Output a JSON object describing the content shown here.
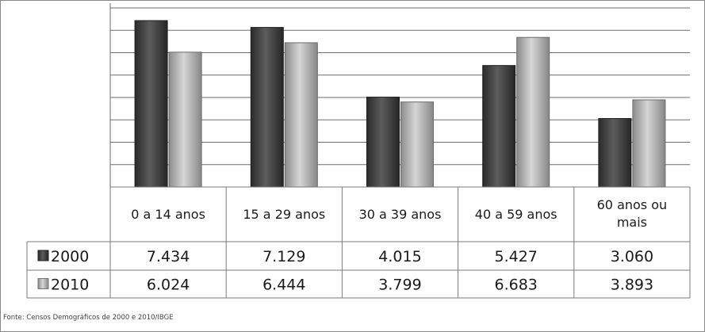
{
  "chart_data": {
    "type": "bar",
    "categories": [
      "0 a 14 anos",
      "15 a 29 anos",
      "30 a 39 anos",
      "40 a 59 anos",
      "60 anos ou mais"
    ],
    "category_lines": [
      [
        "0 a 14 anos"
      ],
      [
        "15 a 29 anos"
      ],
      [
        "30 a 39 anos"
      ],
      [
        "40 a 59 anos"
      ],
      [
        "60 anos ou",
        "mais"
      ]
    ],
    "series": [
      {
        "name": "2000",
        "values": [
          7434,
          7129,
          4015,
          5427,
          3060
        ],
        "labels": [
          "7.434",
          "7.129",
          "4.015",
          "5.427",
          "3.060"
        ],
        "color": "#3a3a3a"
      },
      {
        "name": "2010",
        "values": [
          6024,
          6444,
          3799,
          6683,
          3893
        ],
        "labels": [
          "6.024",
          "6.444",
          "3.799",
          "6.683",
          "3.893"
        ],
        "color": "#9e9e9e"
      }
    ],
    "ylim": [
      0,
      8000
    ],
    "grid": true,
    "legend": "data-table-left",
    "source": "Fonte: Censos Demográficos de 2000 e 2010/IBGE"
  }
}
